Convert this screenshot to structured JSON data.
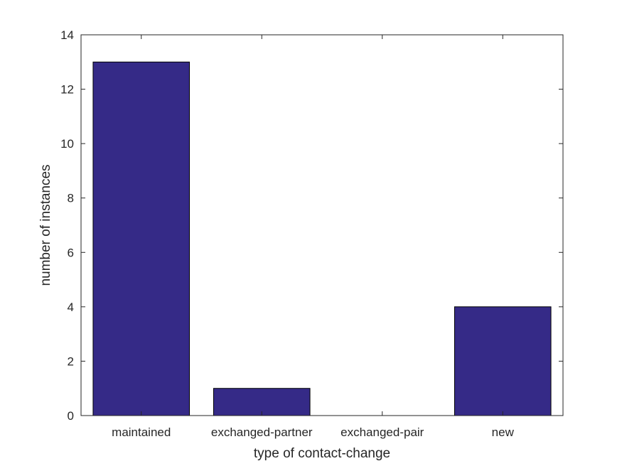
{
  "chart_data": {
    "type": "bar",
    "categories": [
      "maintained",
      "exchanged-partner",
      "exchanged-pair",
      "new"
    ],
    "values": [
      13,
      1,
      0,
      4
    ],
    "title": "",
    "xlabel": "type of contact-change",
    "ylabel": "number of instances",
    "ylim": [
      0,
      14
    ],
    "yticks": [
      "0",
      "2",
      "4",
      "6",
      "8",
      "10",
      "12",
      "14"
    ],
    "grid": false,
    "bar_color": "#352a87",
    "edge_color": "#000000"
  }
}
